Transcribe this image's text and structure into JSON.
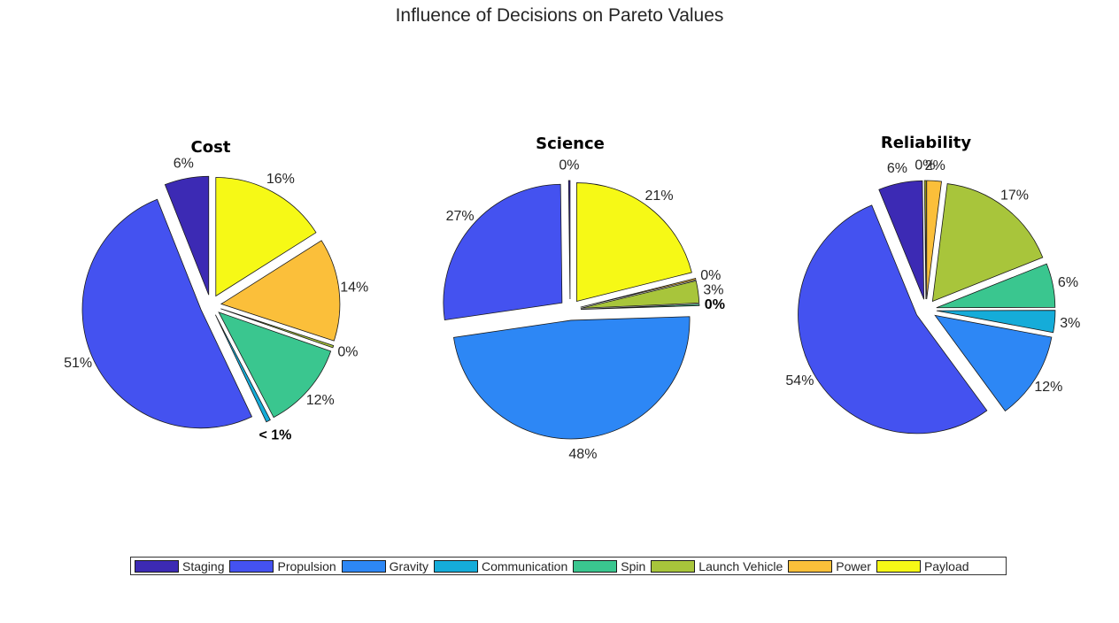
{
  "title": "Influence of Decisions on Pareto Values",
  "categories": [
    "Staging",
    "Propulsion",
    "Gravity",
    "Communication",
    "Spin",
    "Launch Vehicle",
    "Power",
    "Payload"
  ],
  "colors": {
    "Staging": "#3c2ab4",
    "Propulsion": "#4452f0",
    "Gravity": "#2d87f5",
    "Communication": "#15acd9",
    "Spin": "#3ac68f",
    "Launch Vehicle": "#a8c53b",
    "Power": "#fbbf3a",
    "Payload": "#f6f916"
  },
  "chart_data": [
    {
      "type": "pie",
      "title": "Cost",
      "slices": [
        {
          "category": "Payload",
          "value": 16,
          "label": "16%"
        },
        {
          "category": "Power",
          "value": 14,
          "label": "14%"
        },
        {
          "category": "Launch Vehicle",
          "value": 0.3,
          "label": "0%"
        },
        {
          "category": "Spin",
          "value": 12,
          "label": "12%"
        },
        {
          "category": "Communication",
          "value": 0.6,
          "label": "< 1%",
          "bold": true
        },
        {
          "category": "Gravity",
          "value": 0,
          "label": ""
        },
        {
          "category": "Propulsion",
          "value": 51,
          "label": "51%"
        },
        {
          "category": "Staging",
          "value": 6,
          "label": "6%"
        }
      ]
    },
    {
      "type": "pie",
      "title": "Science",
      "slices": [
        {
          "category": "Payload",
          "value": 21,
          "label": "21%"
        },
        {
          "category": "Power",
          "value": 0.2,
          "label": "0%"
        },
        {
          "category": "Launch Vehicle",
          "value": 3,
          "label": "3%"
        },
        {
          "category": "Spin",
          "value": 0.2,
          "label": "0%",
          "bold": true
        },
        {
          "category": "Communication",
          "value": 0,
          "label": ""
        },
        {
          "category": "Gravity",
          "value": 48,
          "label": "48%"
        },
        {
          "category": "Propulsion",
          "value": 27,
          "label": "27%"
        },
        {
          "category": "Staging",
          "value": 0.2,
          "label": "0%"
        }
      ]
    },
    {
      "type": "pie",
      "title": "Reliability",
      "slices": [
        {
          "category": "Power",
          "value": 2,
          "label": "2%"
        },
        {
          "category": "Launch Vehicle",
          "value": 17,
          "label": "17%"
        },
        {
          "category": "Spin",
          "value": 6,
          "label": "6%"
        },
        {
          "category": "Communication",
          "value": 3,
          "label": "3%"
        },
        {
          "category": "Gravity",
          "value": 12,
          "label": "12%"
        },
        {
          "category": "Propulsion",
          "value": 54,
          "label": "54%"
        },
        {
          "category": "Staging",
          "value": 6,
          "label": "6%"
        },
        {
          "category": "Payload",
          "value": 0.2,
          "label": "0%"
        }
      ]
    }
  ]
}
